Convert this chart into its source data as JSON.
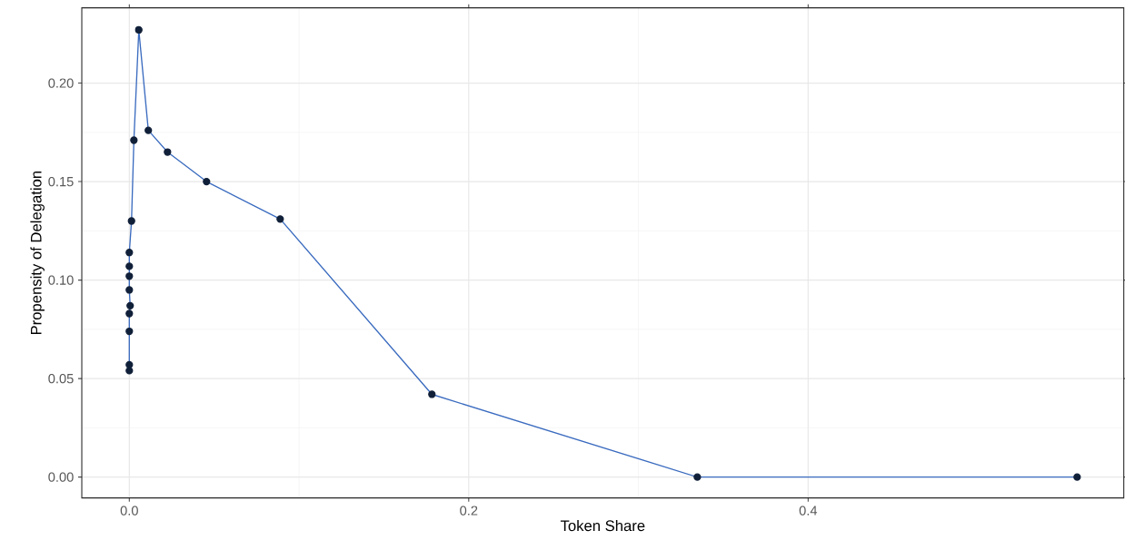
{
  "chart_data": {
    "type": "line",
    "xlabel": "Token Share",
    "ylabel": "Propensity of Delegation",
    "x": [
      0.0,
      0.0,
      0.0,
      0.0,
      0.0005,
      0.0,
      0.0,
      0.0,
      0.0,
      0.0013,
      0.0027,
      0.0056,
      0.0112,
      0.0225,
      0.0455,
      0.0889,
      0.1783,
      0.3347,
      0.5585
    ],
    "series": [
      {
        "color": "#3a6bbf",
        "values": [
          0.054,
          0.057,
          0.074,
          0.083,
          0.087,
          0.095,
          0.102,
          0.107,
          0.114,
          0.13,
          0.171,
          0.227,
          0.176,
          0.165,
          0.15,
          0.131,
          0.042,
          0.0,
          0.0
        ]
      }
    ],
    "marker": "circle",
    "grid": true,
    "xlim": [
      -0.028,
      0.586
    ],
    "ylim": [
      -0.0106,
      0.2382
    ],
    "xticks": [
      {
        "value": 0,
        "label": "0.0"
      },
      {
        "value": 0.2,
        "label": "0.2"
      },
      {
        "value": 0.4,
        "label": "0.4"
      }
    ],
    "yticks": [
      {
        "value": 0,
        "label": "0.00"
      },
      {
        "value": 0.05,
        "label": "0.05"
      },
      {
        "value": 0.1,
        "label": "0.10"
      },
      {
        "value": 0.15,
        "label": "0.15"
      },
      {
        "value": 0.2,
        "label": "0.20"
      }
    ]
  }
}
